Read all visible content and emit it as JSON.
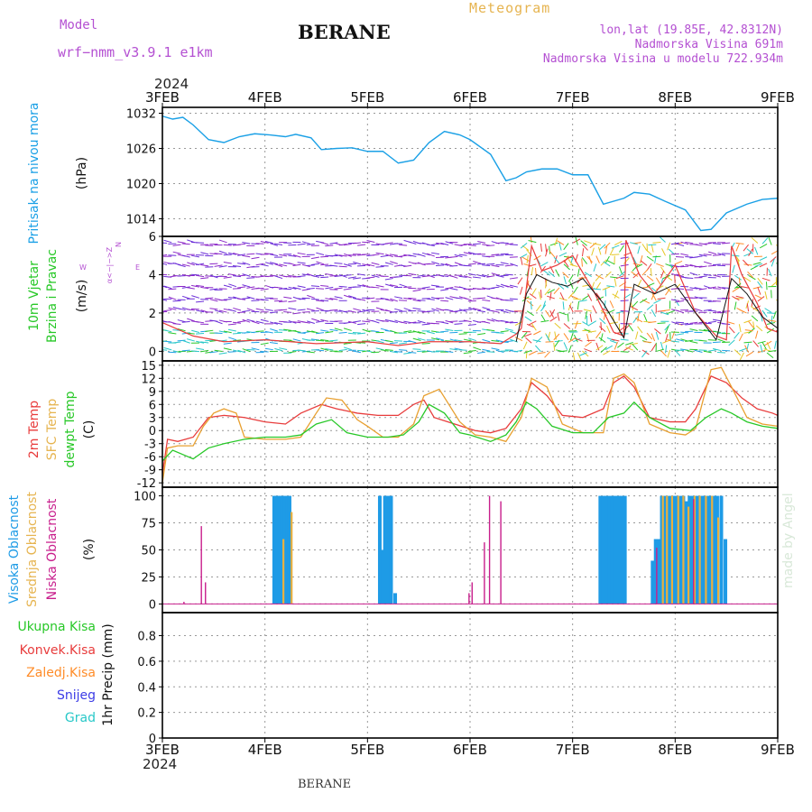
{
  "header": {
    "model_label": "Model",
    "model_name": "wrf−nmm_v3.9.1 e1km",
    "station": "BERANE",
    "meteogram_label": "Meteogram",
    "location": "lon,lat (19.85E, 42.8312N)",
    "elevation": "Nadmorska Visina 691m",
    "model_elevation": "Nadmorska Visina u modelu 722.934m",
    "year_top": "2024",
    "year_bottom": "2024",
    "footer_station": "BERANE",
    "watermark": "made by Angel"
  },
  "colors": {
    "pressure": "#1aa0e6",
    "temp2m": "#e83c3c",
    "sfc_temp": "#e8a030",
    "dewpoint": "#28c828",
    "low_cloud": "#c81e8c",
    "mid_cloud": "#e8b040",
    "high_cloud": "#1e9be6",
    "purple_label": "#b450d2",
    "gold_label": "#e6b450"
  },
  "chart_data": [
    {
      "type": "line",
      "panel": "pressure",
      "ylabel_lines": [
        "Pritisak na nivou mora",
        "(hPa)"
      ],
      "x_ticks": [
        "3FEB",
        "4FEB",
        "5FEB",
        "6FEB",
        "7FEB",
        "8FEB",
        "9FEB"
      ],
      "xlim_days": [
        0,
        6
      ],
      "ylim": [
        1011,
        1033
      ],
      "yticks": [
        1014,
        1020,
        1026,
        1032
      ],
      "grid": true,
      "series": [
        {
          "color": "#1aa0e6",
          "x": [
            0,
            0.1,
            0.2,
            0.3,
            0.45,
            0.6,
            0.75,
            0.9,
            1.05,
            1.2,
            1.3,
            1.45,
            1.55,
            1.7,
            1.85,
            2.0,
            2.15,
            2.3,
            2.45,
            2.6,
            2.75,
            2.9,
            3.0,
            3.2,
            3.35,
            3.45,
            3.55,
            3.7,
            3.85,
            4.0,
            4.15,
            4.3,
            4.5,
            4.6,
            4.75,
            4.9,
            5.1,
            5.25,
            5.35,
            5.5,
            5.7,
            5.85,
            6.0
          ],
          "y": [
            1031.5,
            1031.0,
            1031.3,
            1030.0,
            1027.5,
            1027.0,
            1028.0,
            1028.5,
            1028.3,
            1028.0,
            1028.4,
            1027.8,
            1025.8,
            1026.0,
            1026.1,
            1025.5,
            1025.5,
            1023.5,
            1024.0,
            1027.0,
            1028.9,
            1028.3,
            1027.5,
            1025.0,
            1020.5,
            1021.0,
            1022.0,
            1022.5,
            1022.5,
            1021.5,
            1021.5,
            1016.5,
            1017.5,
            1018.5,
            1018.2,
            1017.0,
            1015.5,
            1012.0,
            1012.2,
            1015.0,
            1016.5,
            1017.3,
            1017.5
          ]
        }
      ]
    },
    {
      "type": "scatter",
      "panel": "wind",
      "ylabel_lines": [
        "10m Vjetar",
        "Brzina i Pravac",
        "(m/s)"
      ],
      "compass_labels": {
        "n": "N",
        "e": "E",
        "s": "S",
        "w": "W",
        "hint": "α<−|−>Z"
      },
      "xlim_days": [
        0,
        6
      ],
      "ylim": [
        -0.5,
        6
      ],
      "yticks": [
        0,
        2,
        4,
        6
      ],
      "grid": true,
      "wind_speed_line": {
        "color": "#e83c3c",
        "x": [
          0,
          0.3,
          0.6,
          1.0,
          1.5,
          2.0,
          2.3,
          2.6,
          3.0,
          3.3,
          3.45,
          3.5,
          3.6,
          3.7,
          3.85,
          4.0,
          4.2,
          4.4,
          4.5,
          4.52,
          4.65,
          4.8,
          5.0,
          5.2,
          5.4,
          5.5,
          5.55,
          5.65,
          5.8,
          5.9,
          6.0
        ],
        "y": [
          1.5,
          0.8,
          0.5,
          0.6,
          0.4,
          0.5,
          0.3,
          0.5,
          0.5,
          0.4,
          0.9,
          1.2,
          5.5,
          4.2,
          4.5,
          5.0,
          3.2,
          1.0,
          0.8,
          5.8,
          4.0,
          3.0,
          4.5,
          2.0,
          0.8,
          0.6,
          5.5,
          4.0,
          2.5,
          1.2,
          1.0
        ]
      },
      "model_wind_line": {
        "color": "#111111",
        "x": [
          3.45,
          3.55,
          3.65,
          3.8,
          3.95,
          4.1,
          4.3,
          4.5,
          4.6,
          4.8,
          5.0,
          5.2,
          5.4,
          5.55,
          5.7,
          5.85,
          6.0
        ],
        "y": [
          0.5,
          3.0,
          4.0,
          3.6,
          3.4,
          3.8,
          2.5,
          0.7,
          3.5,
          3.0,
          3.5,
          2.0,
          0.6,
          3.8,
          3.0,
          1.8,
          1.2
        ]
      }
    },
    {
      "type": "line",
      "panel": "temperature",
      "ylabel_lines": [
        "2m Temp",
        "SFC Temp",
        "dewpt Temp",
        "(C)"
      ],
      "xlim_days": [
        0,
        6
      ],
      "ylim": [
        -13,
        16
      ],
      "yticks": [
        -12,
        -9,
        -6,
        -3,
        0,
        3,
        6,
        9,
        12,
        15
      ],
      "grid": true,
      "series": [
        {
          "name": "2m Temp",
          "color": "#e83c3c",
          "x": [
            0,
            0.05,
            0.15,
            0.3,
            0.45,
            0.6,
            0.8,
            1.0,
            1.2,
            1.35,
            1.55,
            1.7,
            1.9,
            2.1,
            2.3,
            2.45,
            2.55,
            2.65,
            2.85,
            3.05,
            3.2,
            3.35,
            3.5,
            3.6,
            3.75,
            3.9,
            4.1,
            4.3,
            4.4,
            4.5,
            4.6,
            4.75,
            4.95,
            5.1,
            5.2,
            5.35,
            5.5,
            5.65,
            5.8,
            5.95,
            6.0
          ],
          "y": [
            -10,
            -2,
            -2.5,
            -1.5,
            3.0,
            3.5,
            3.0,
            2.0,
            1.5,
            4.0,
            6.0,
            5.0,
            4.0,
            3.5,
            3.5,
            6.0,
            7.0,
            3.0,
            1.5,
            0.0,
            -0.5,
            0.5,
            5.0,
            11.0,
            8.0,
            3.5,
            3.0,
            5.0,
            11.0,
            12.5,
            10.0,
            3.0,
            2.0,
            2.0,
            5.0,
            12.5,
            11.0,
            7.5,
            5.0,
            4.0,
            3.5
          ]
        },
        {
          "name": "SFC Temp",
          "color": "#e8a030",
          "x": [
            0,
            0.05,
            0.15,
            0.3,
            0.4,
            0.5,
            0.6,
            0.72,
            0.8,
            1.0,
            1.2,
            1.35,
            1.5,
            1.6,
            1.75,
            1.9,
            2.0,
            2.15,
            2.3,
            2.45,
            2.55,
            2.7,
            2.9,
            3.05,
            3.2,
            3.35,
            3.5,
            3.6,
            3.75,
            3.9,
            4.1,
            4.3,
            4.4,
            4.5,
            4.6,
            4.75,
            4.95,
            5.1,
            5.2,
            5.35,
            5.45,
            5.55,
            5.7,
            5.85,
            6.0
          ],
          "y": [
            -12,
            -4,
            -3.5,
            -3.5,
            1.0,
            4.0,
            5.0,
            4.0,
            -1.5,
            -2.0,
            -2.0,
            -1.5,
            4.0,
            7.5,
            7.0,
            2.5,
            1.0,
            -1.5,
            -1.5,
            1.5,
            8.0,
            9.5,
            2.0,
            -1.0,
            -1.5,
            -2.5,
            3.0,
            12.0,
            10.0,
            1.5,
            -0.5,
            -0.5,
            12.0,
            13.0,
            11.0,
            1.5,
            -0.5,
            -1.0,
            0.5,
            14.0,
            14.5,
            10.0,
            3.0,
            1.5,
            1.0
          ]
        },
        {
          "name": "dewpt Temp",
          "color": "#28c828",
          "x": [
            0,
            0.1,
            0.2,
            0.3,
            0.45,
            0.6,
            0.8,
            1.0,
            1.2,
            1.35,
            1.5,
            1.65,
            1.8,
            2.0,
            2.2,
            2.35,
            2.5,
            2.6,
            2.75,
            2.9,
            3.0,
            3.2,
            3.35,
            3.45,
            3.55,
            3.65,
            3.8,
            4.0,
            4.2,
            4.35,
            4.5,
            4.6,
            4.75,
            4.95,
            5.15,
            5.3,
            5.45,
            5.55,
            5.7,
            5.85,
            6.0
          ],
          "y": [
            -7,
            -4.5,
            -5.5,
            -6.5,
            -4.0,
            -3.0,
            -2.0,
            -1.5,
            -1.5,
            -1.0,
            1.5,
            2.5,
            -0.5,
            -1.5,
            -1.5,
            -1.0,
            2.0,
            6.0,
            4.0,
            -0.5,
            -1.0,
            -2.5,
            -1.0,
            2.0,
            6.5,
            5.0,
            1.0,
            -0.5,
            -0.5,
            3.0,
            4.0,
            6.5,
            3.0,
            0.5,
            0.0,
            3.0,
            5.0,
            4.0,
            2.0,
            1.0,
            0.5
          ]
        }
      ]
    },
    {
      "type": "bar",
      "panel": "clouds",
      "ylabel_lines": [
        "Visoka Oblacnost",
        "Srednja Oblacnost",
        "Niska Oblacnost",
        "(%)"
      ],
      "xlim_days": [
        0,
        6
      ],
      "ylim": [
        -8,
        108
      ],
      "yticks": [
        0,
        25,
        50,
        75,
        100
      ],
      "grid": true,
      "series": [
        {
          "name": "Visoka Oblacnost",
          "color": "#1e9be6",
          "bars": [
            [
              1.09,
              100
            ],
            [
              1.11,
              100
            ],
            [
              1.13,
              100
            ],
            [
              1.15,
              100
            ],
            [
              1.17,
              100
            ],
            [
              1.19,
              100
            ],
            [
              1.22,
              100
            ],
            [
              1.24,
              100
            ],
            [
              2.12,
              100
            ],
            [
              2.15,
              50
            ],
            [
              2.17,
              100
            ],
            [
              2.2,
              100
            ],
            [
              2.23,
              100
            ],
            [
              2.27,
              10
            ],
            [
              4.27,
              100
            ],
            [
              4.3,
              100
            ],
            [
              4.33,
              100
            ],
            [
              4.36,
              100
            ],
            [
              4.39,
              100
            ],
            [
              4.42,
              100
            ],
            [
              4.45,
              100
            ],
            [
              4.48,
              100
            ],
            [
              4.51,
              100
            ],
            [
              4.78,
              40
            ],
            [
              4.81,
              60
            ],
            [
              4.84,
              60
            ],
            [
              4.87,
              100
            ],
            [
              4.9,
              100
            ],
            [
              4.93,
              100
            ],
            [
              4.96,
              100
            ],
            [
              4.99,
              100
            ],
            [
              5.02,
              100
            ],
            [
              5.05,
              100
            ],
            [
              5.08,
              100
            ],
            [
              5.11,
              95
            ],
            [
              5.14,
              100
            ],
            [
              5.17,
              100
            ],
            [
              5.2,
              100
            ],
            [
              5.23,
              100
            ],
            [
              5.26,
              100
            ],
            [
              5.29,
              100
            ],
            [
              5.32,
              100
            ],
            [
              5.35,
              100
            ],
            [
              5.38,
              100
            ],
            [
              5.41,
              100
            ],
            [
              5.45,
              100
            ],
            [
              5.49,
              60
            ]
          ]
        },
        {
          "name": "Srednja Oblacnost",
          "color": "#e8b040",
          "bars": [
            [
              1.18,
              60
            ],
            [
              1.26,
              85
            ],
            [
              4.88,
              100
            ],
            [
              4.92,
              100
            ],
            [
              4.97,
              100
            ],
            [
              5.03,
              100
            ],
            [
              5.08,
              100
            ],
            [
              5.13,
              90
            ],
            [
              5.19,
              100
            ],
            [
              5.24,
              100
            ],
            [
              5.3,
              100
            ],
            [
              5.36,
              100
            ],
            [
              5.42,
              80
            ]
          ]
        },
        {
          "name": "Niska Oblacnost",
          "color": "#c81e8c",
          "bars": [
            [
              0.21,
              2
            ],
            [
              0.38,
              72
            ],
            [
              0.42,
              20
            ],
            [
              2.99,
              10
            ],
            [
              3.02,
              20
            ],
            [
              3.14,
              57
            ],
            [
              3.19,
              100
            ],
            [
              3.3,
              95
            ],
            [
              4.82,
              52
            ],
            [
              5.18,
              97
            ]
          ]
        }
      ]
    },
    {
      "type": "bar",
      "panel": "precipitation",
      "ylabel_lines": [
        "1hr Precip (mm)"
      ],
      "legend": [
        "Ukupna Kisa",
        "Konvek.Kisa",
        "Zaledj.Kisa",
        "Snijeg",
        "Grad"
      ],
      "legend_colors": [
        "#28c828",
        "#e83c3c",
        "#ff8c28",
        "#3c3ce6",
        "#28c8c8"
      ],
      "x_ticks": [
        "3FEB",
        "4FEB",
        "5FEB",
        "6FEB",
        "7FEB",
        "8FEB",
        "9FEB"
      ],
      "xlim_days": [
        0,
        6
      ],
      "ylim": [
        0,
        0.98
      ],
      "yticks": [
        "0",
        "0.2",
        "0.4",
        "0.6",
        "0.8"
      ],
      "grid": true,
      "series": []
    }
  ]
}
